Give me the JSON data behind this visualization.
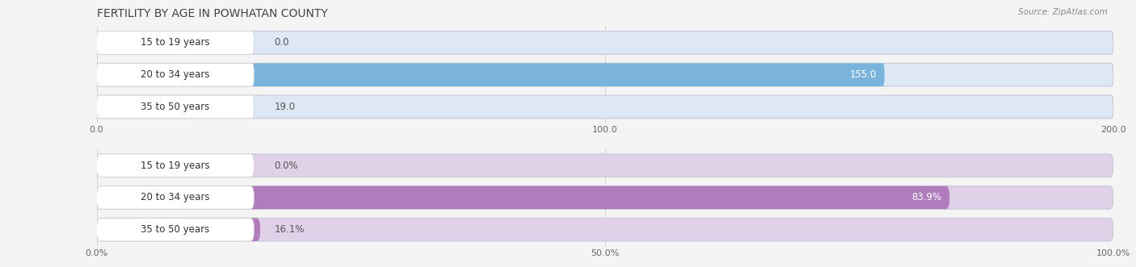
{
  "title": "FERTILITY BY AGE IN POWHATAN COUNTY",
  "source": "Source: ZipAtlas.com",
  "top_chart": {
    "categories": [
      "15 to 19 years",
      "20 to 34 years",
      "35 to 50 years"
    ],
    "values": [
      0.0,
      155.0,
      19.0
    ],
    "max_val": 200.0,
    "xticks": [
      0.0,
      100.0,
      200.0
    ],
    "xtick_labels": [
      "0.0",
      "100.0",
      "200.0"
    ],
    "bar_color": "#7ab4dc",
    "bar_bg_color": "#dde8f4",
    "value_labels": [
      "0.0",
      "155.0",
      "19.0"
    ],
    "label_inside": [
      false,
      true,
      false
    ]
  },
  "bottom_chart": {
    "categories": [
      "15 to 19 years",
      "20 to 34 years",
      "35 to 50 years"
    ],
    "values": [
      0.0,
      83.9,
      16.1
    ],
    "max_val": 100.0,
    "xticks": [
      0.0,
      50.0,
      100.0
    ],
    "xtick_labels": [
      "0.0%",
      "50.0%",
      "100.0%"
    ],
    "bar_color": "#b07cbc",
    "bar_bg_color": "#e0d0e8",
    "value_labels": [
      "0.0%",
      "83.9%",
      "16.1%"
    ],
    "label_inside": [
      false,
      true,
      false
    ]
  },
  "fig_bg_color": "#f4f4f4",
  "chart_bg_color": "#f4f4f4",
  "bar_height": 0.72,
  "title_fontsize": 10,
  "tick_fontsize": 8,
  "category_fontsize": 8.5,
  "value_fontsize": 8.5
}
